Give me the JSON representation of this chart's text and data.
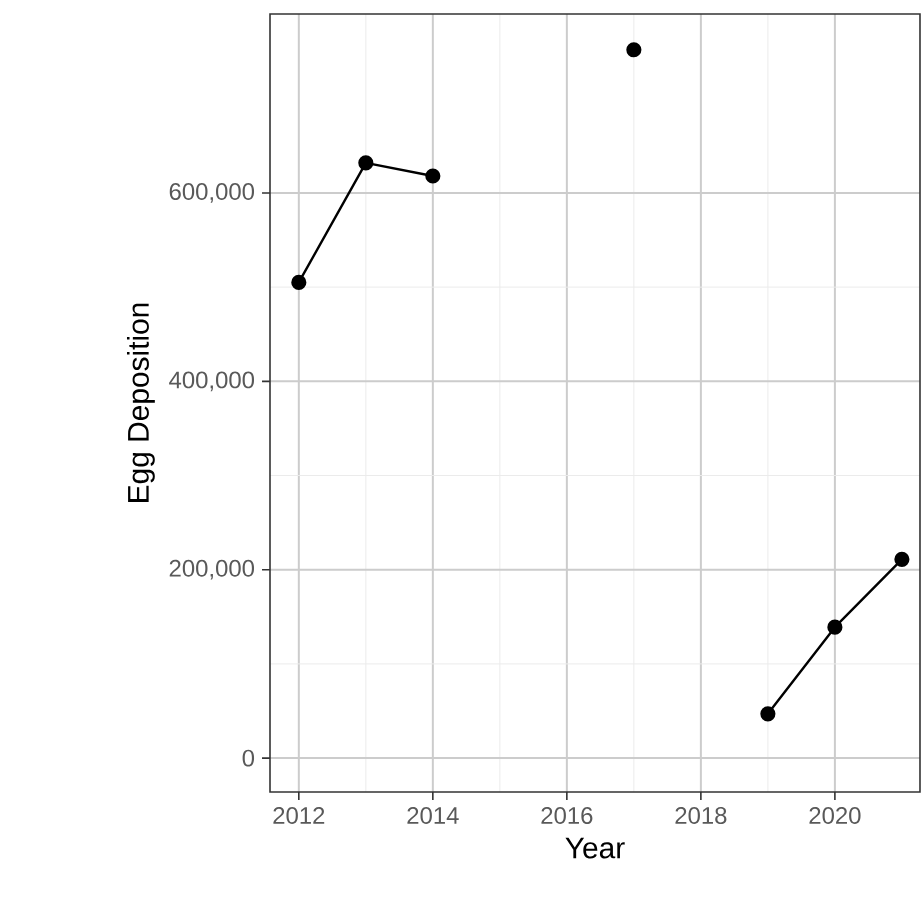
{
  "chart_data": {
    "type": "line",
    "xlabel": "Year",
    "ylabel": "Egg Deposition",
    "x": [
      2012,
      2013,
      2014,
      2015,
      2016,
      2017,
      2018,
      2019,
      2020,
      2021
    ],
    "series": [
      {
        "color": "#000000",
        "values": [
          505000,
          632000,
          618000,
          null,
          null,
          752000,
          null,
          47000,
          139000,
          211000
        ]
      }
    ],
    "xlim": [
      2011.57,
      2021.27
    ],
    "ylim": [
      -36000,
      790000
    ],
    "xticks": [
      2012,
      2014,
      2016,
      2018,
      2020
    ],
    "yticks": [
      {
        "value": 0,
        "label": "0"
      },
      {
        "value": 200000,
        "label": "200,000"
      },
      {
        "value": 400000,
        "label": "400,000"
      },
      {
        "value": 600000,
        "label": "600,000"
      }
    ],
    "grid": true,
    "marker": "circle",
    "line_style": "solid"
  }
}
